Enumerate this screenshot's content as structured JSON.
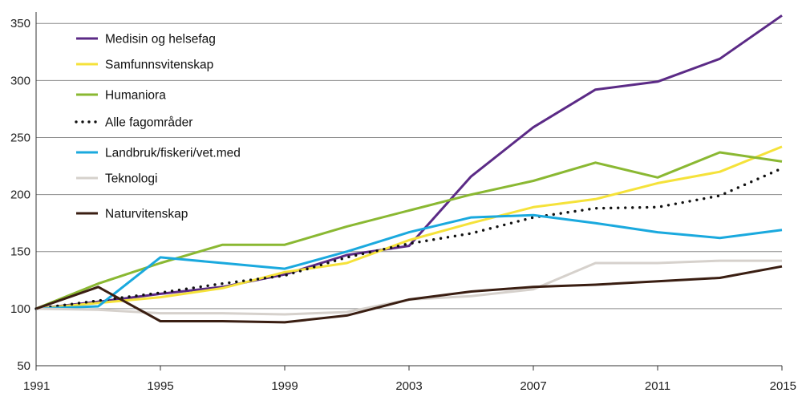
{
  "chart_data": {
    "type": "line",
    "title": "",
    "xlabel": "",
    "ylabel": "",
    "xlim": [
      1991,
      2015
    ],
    "ylim": [
      50,
      360
    ],
    "x_ticks": [
      1991,
      1995,
      1999,
      2003,
      2007,
      2011,
      2015
    ],
    "x_tick_labels": [
      "1991",
      "1995",
      "1999",
      "2003",
      "2007",
      "2011",
      "2015"
    ],
    "y_ticks": [
      50,
      100,
      150,
      200,
      250,
      300,
      350
    ],
    "y_tick_labels": [
      "50",
      "100",
      "150",
      "200",
      "250",
      "300",
      "350"
    ],
    "grid": "horizontal",
    "legend_position": "top-left",
    "series": [
      {
        "name": "Medisin og helsefag",
        "color": "#5b2a86",
        "dash": "solid",
        "points": [
          [
            1991,
            100
          ],
          [
            1993,
            106
          ],
          [
            1995,
            113
          ],
          [
            1997,
            119
          ],
          [
            1999,
            130
          ],
          [
            2001,
            147
          ],
          [
            2003,
            155
          ],
          [
            2005,
            216
          ],
          [
            2007,
            259
          ],
          [
            2009,
            292
          ],
          [
            2011,
            299
          ],
          [
            2013,
            319
          ],
          [
            2015,
            357
          ]
        ]
      },
      {
        "name": "Samfunnsvitenskap",
        "color": "#f5e23a",
        "dash": "solid",
        "points": [
          [
            1991,
            100
          ],
          [
            1993,
            105
          ],
          [
            1995,
            110
          ],
          [
            1997,
            118
          ],
          [
            1999,
            132
          ],
          [
            2001,
            140
          ],
          [
            2003,
            160
          ],
          [
            2005,
            175
          ],
          [
            2007,
            189
          ],
          [
            2009,
            196
          ],
          [
            2011,
            210
          ],
          [
            2013,
            220
          ],
          [
            2015,
            242
          ]
        ]
      },
      {
        "name": "Humaniora",
        "color": "#8ab832",
        "dash": "solid",
        "points": [
          [
            1991,
            100
          ],
          [
            1993,
            122
          ],
          [
            1995,
            140
          ],
          [
            1997,
            156
          ],
          [
            1999,
            156
          ],
          [
            2001,
            172
          ],
          [
            2003,
            186
          ],
          [
            2005,
            200
          ],
          [
            2007,
            212
          ],
          [
            2009,
            228
          ],
          [
            2011,
            215
          ],
          [
            2013,
            237
          ],
          [
            2015,
            229
          ]
        ]
      },
      {
        "name": "Alle fagområder",
        "color": "#111111",
        "dash": "dotted",
        "points": [
          [
            1991,
            100
          ],
          [
            1993,
            107
          ],
          [
            1995,
            114
          ],
          [
            1997,
            122
          ],
          [
            1999,
            129
          ],
          [
            2001,
            145
          ],
          [
            2003,
            157
          ],
          [
            2005,
            166
          ],
          [
            2007,
            180
          ],
          [
            2009,
            188
          ],
          [
            2011,
            189
          ],
          [
            2013,
            199
          ],
          [
            2015,
            223
          ]
        ]
      },
      {
        "name": "Landbruk/fiskeri/vet.med",
        "color": "#1aa9de",
        "dash": "solid",
        "points": [
          [
            1991,
            100
          ],
          [
            1993,
            102
          ],
          [
            1995,
            145
          ],
          [
            1997,
            140
          ],
          [
            1999,
            135
          ],
          [
            2001,
            150
          ],
          [
            2003,
            167
          ],
          [
            2005,
            180
          ],
          [
            2007,
            182
          ],
          [
            2009,
            175
          ],
          [
            2011,
            167
          ],
          [
            2013,
            162
          ],
          [
            2015,
            169
          ]
        ]
      },
      {
        "name": "Teknologi",
        "color": "#d6d1cc",
        "dash": "solid",
        "points": [
          [
            1991,
            100
          ],
          [
            1993,
            99
          ],
          [
            1995,
            96
          ],
          [
            1997,
            96
          ],
          [
            1999,
            95
          ],
          [
            2001,
            97
          ],
          [
            2003,
            108
          ],
          [
            2005,
            111
          ],
          [
            2007,
            117
          ],
          [
            2009,
            140
          ],
          [
            2011,
            140
          ],
          [
            2013,
            142
          ],
          [
            2015,
            142
          ]
        ]
      },
      {
        "name": "Naturvitenskap",
        "color": "#3a1e12",
        "dash": "solid",
        "points": [
          [
            1991,
            100
          ],
          [
            1993,
            119
          ],
          [
            1995,
            89
          ],
          [
            1997,
            89
          ],
          [
            1999,
            88
          ],
          [
            2001,
            94
          ],
          [
            2003,
            108
          ],
          [
            2005,
            115
          ],
          [
            2007,
            119
          ],
          [
            2009,
            121
          ],
          [
            2011,
            124
          ],
          [
            2013,
            127
          ],
          [
            2015,
            137
          ]
        ]
      }
    ]
  }
}
